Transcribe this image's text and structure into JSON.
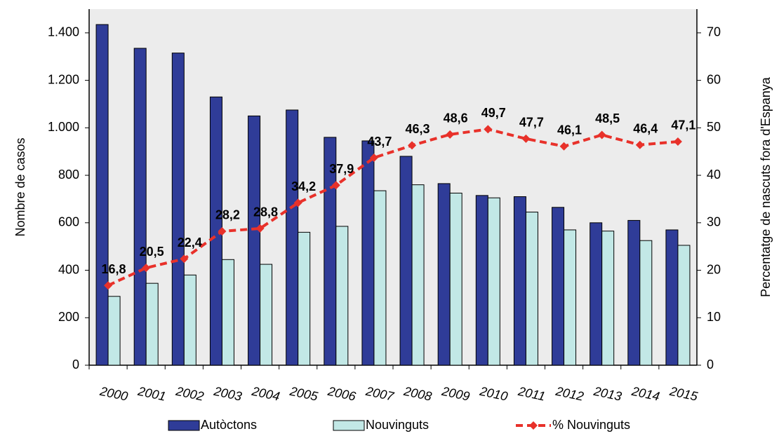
{
  "chart_data": {
    "type": "bar-line",
    "categories": [
      "2000",
      "2001",
      "2002",
      "2003",
      "2004",
      "2005",
      "2006",
      "2007",
      "2008",
      "2009",
      "2010",
      "2011",
      "2012",
      "2013",
      "2014",
      "2015"
    ],
    "series": [
      {
        "name": "Autòctons",
        "color": "#2f3c98",
        "type": "bar",
        "values": [
          1435,
          1335,
          1315,
          1130,
          1050,
          1075,
          960,
          945,
          880,
          765,
          715,
          710,
          665,
          600,
          610,
          570
        ]
      },
      {
        "name": "Nouvinguts",
        "color": "#c2e8e6",
        "type": "bar",
        "values": [
          290,
          345,
          380,
          445,
          425,
          560,
          585,
          735,
          760,
          725,
          705,
          645,
          570,
          565,
          525,
          505
        ]
      },
      {
        "name": "% Nouvinguts",
        "color": "#e8312a",
        "type": "line",
        "axis": "y2",
        "values": [
          16.8,
          20.5,
          22.4,
          28.2,
          28.8,
          34.2,
          37.9,
          43.7,
          46.3,
          48.6,
          49.7,
          47.7,
          46.1,
          48.5,
          46.4,
          47.1
        ],
        "value_labels": [
          "16,8",
          "20,5",
          "22,4",
          "28,2",
          "28,8",
          "34,2",
          "37,9",
          "43,7",
          "46,3",
          "48,6",
          "49,7",
          "47,7",
          "46,1",
          "48,5",
          "46,4",
          "47,1"
        ]
      }
    ],
    "ylabel": "Nombre de casos",
    "y2label": "Percentatge de nascuts fora d'Espanya",
    "ylim": [
      0,
      1500
    ],
    "yticks": [
      0,
      200,
      400,
      600,
      800,
      {
        "value": 1000,
        "label": "1.000"
      },
      {
        "value": 1200,
        "label": "1.200"
      },
      {
        "value": 1400,
        "label": "1.400"
      }
    ],
    "y2lim": [
      0,
      75
    ],
    "y2ticks": [
      0,
      10,
      20,
      30,
      40,
      50,
      60,
      70
    ]
  }
}
